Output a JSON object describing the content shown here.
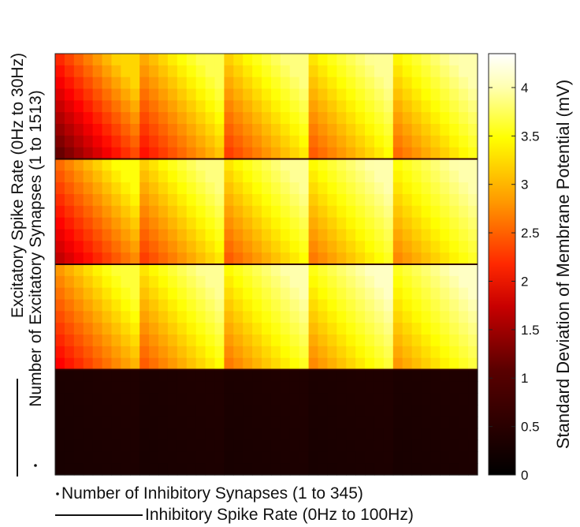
{
  "chart_data": {
    "type": "heatmap",
    "grid": {
      "rows": 4,
      "cols": 5
    },
    "row_order": "top-to-bottom",
    "x_axis": {
      "label_inner": "Number of Inhibitory Synapses (1 to 345)",
      "label_outer": "Inhibitory Spike Rate (0Hz to 100Hz)",
      "inner_range": [
        1,
        345
      ],
      "outer_range_hz": [
        0,
        100
      ],
      "inner_legend_marker": "dot",
      "outer_legend_marker": "line"
    },
    "y_axis": {
      "label_inner": "Number of Excitatory Synapses (1 to 1513)",
      "label_outer": "Excitatory Spike Rate (0Hz to 30Hz)",
      "inner_range": [
        1,
        1513
      ],
      "outer_range_hz": [
        0,
        30
      ],
      "inner_legend_marker": "dot",
      "outer_legend_marker": "line"
    },
    "colorbar": {
      "label": "Standard Deviation of Membrane Potential (mV)",
      "range": [
        0,
        4.35
      ],
      "ticks": [
        "0",
        "0.5",
        "1",
        "1.5",
        "2",
        "2.5",
        "3",
        "3.5",
        "4"
      ],
      "tick_values": [
        0,
        0.5,
        1,
        1.5,
        2,
        2.5,
        3,
        3.5,
        4
      ],
      "colormap": "hot"
    },
    "panels": [
      [
        {
          "low": 0.5,
          "high": 3.0
        },
        {
          "low": 1.6,
          "high": 3.6
        },
        {
          "low": 1.9,
          "high": 3.8
        },
        {
          "low": 2.1,
          "high": 3.9
        },
        {
          "low": 2.2,
          "high": 4.0
        }
      ],
      [
        {
          "low": 1.1,
          "high": 3.3
        },
        {
          "low": 1.9,
          "high": 3.8
        },
        {
          "low": 2.1,
          "high": 3.9
        },
        {
          "low": 2.3,
          "high": 4.0
        },
        {
          "low": 2.4,
          "high": 4.0
        }
      ],
      [
        {
          "low": 1.5,
          "high": 3.5
        },
        {
          "low": 2.1,
          "high": 3.9
        },
        {
          "low": 2.3,
          "high": 4.0
        },
        {
          "low": 2.4,
          "high": 4.1
        },
        {
          "low": 2.5,
          "high": 4.1
        }
      ],
      [
        {
          "low": 0.15,
          "high": 0.2
        },
        {
          "low": 0.15,
          "high": 0.2
        },
        {
          "low": 0.15,
          "high": 0.2
        },
        {
          "low": 0.15,
          "high": 0.2
        },
        {
          "low": 0.15,
          "high": 0.2
        }
      ]
    ]
  }
}
